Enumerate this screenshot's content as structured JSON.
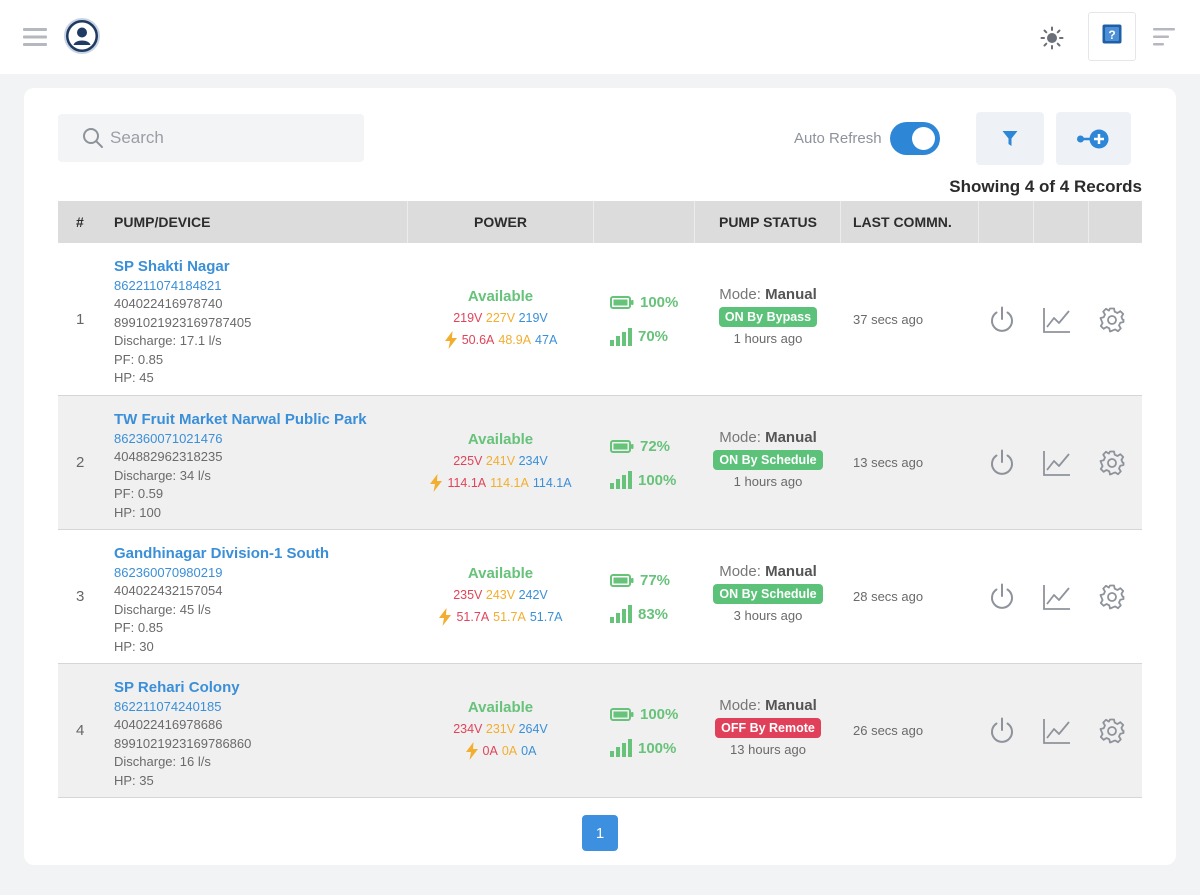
{
  "search": {
    "placeholder": "Search"
  },
  "auto_refresh": {
    "label": "Auto Refresh",
    "enabled": true
  },
  "records_text": "Showing 4 of 4 Records",
  "columns": {
    "index": "#",
    "device": "PUMP/DEVICE",
    "power": "POWER",
    "pump_status": "PUMP STATUS",
    "last_comm": "LAST COMMN."
  },
  "colors": {
    "accent": "#3a8fd8",
    "available": "#67c27a",
    "on_badge": "#5cc27a",
    "off_badge": "#e0405a",
    "phase_r": "#e0445a",
    "phase_y": "#f2ae2f",
    "phase_b": "#3a8fd8"
  },
  "rows": [
    {
      "index": "1",
      "name": "SP Shakti Nagar",
      "imei": "862211074184821",
      "id2": "404022416978740",
      "id3": "8991021923169787405",
      "discharge": "Discharge: 17.1 l/s",
      "pf": "PF: 0.85",
      "hp": "HP: 45",
      "power_status": "Available",
      "volts": [
        "219V",
        "227V",
        "219V"
      ],
      "amps": [
        "50.6A",
        "48.9A",
        "47A"
      ],
      "battery": "100%",
      "signal": "70%",
      "mode_label": "Mode:",
      "mode": "Manual",
      "badge": "ON By Bypass",
      "badge_type": "on",
      "status_ago": "1 hours ago",
      "last_comm": "37 secs ago"
    },
    {
      "index": "2",
      "name": "TW Fruit Market Narwal Public Park",
      "imei": "862360071021476",
      "id2": "404882962318235",
      "id3": "",
      "discharge": "Discharge: 34 l/s",
      "pf": "PF: 0.59",
      "hp": "HP: 100",
      "power_status": "Available",
      "volts": [
        "225V",
        "241V",
        "234V"
      ],
      "amps": [
        "114.1A",
        "114.1A",
        "114.1A"
      ],
      "battery": "72%",
      "signal": "100%",
      "mode_label": "Mode:",
      "mode": "Manual",
      "badge": "ON By Schedule",
      "badge_type": "on",
      "status_ago": "1 hours ago",
      "last_comm": "13 secs ago"
    },
    {
      "index": "3",
      "name": "Gandhinagar Division-1 South",
      "imei": "862360070980219",
      "id2": "404022432157054",
      "id3": "",
      "discharge": "Discharge: 45 l/s",
      "pf": "PF: 0.85",
      "hp": "HP: 30",
      "power_status": "Available",
      "volts": [
        "235V",
        "243V",
        "242V"
      ],
      "amps": [
        "51.7A",
        "51.7A",
        "51.7A"
      ],
      "battery": "77%",
      "signal": "83%",
      "mode_label": "Mode:",
      "mode": "Manual",
      "badge": "ON By Schedule",
      "badge_type": "on",
      "status_ago": "3 hours ago",
      "last_comm": "28 secs ago"
    },
    {
      "index": "4",
      "name": "SP Rehari Colony",
      "imei": "862211074240185",
      "id2": "404022416978686",
      "id3": "8991021923169786860",
      "discharge": "Discharge: 16 l/s",
      "pf": "",
      "hp": "HP: 35",
      "power_status": "Available",
      "volts": [
        "234V",
        "231V",
        "264V"
      ],
      "amps": [
        "0A",
        "0A",
        "0A"
      ],
      "battery": "100%",
      "signal": "100%",
      "mode_label": "Mode:",
      "mode": "Manual",
      "badge": "OFF By Remote",
      "badge_type": "off",
      "status_ago": "13 hours ago",
      "last_comm": "26 secs ago"
    }
  ],
  "pagination": {
    "current": "1"
  },
  "icons": {
    "menu": "hamburger-icon",
    "avatar": "user-avatar-icon",
    "theme": "sun-icon",
    "help": "help-icon",
    "menu_right": "menu-lines-icon",
    "search": "search-icon",
    "filter": "filter-icon",
    "add": "add-device-icon",
    "power": "power-icon",
    "chart": "chart-icon",
    "settings": "gear-icon",
    "bolt": "lightning-icon",
    "battery": "battery-icon",
    "signal": "signal-bars-icon"
  }
}
